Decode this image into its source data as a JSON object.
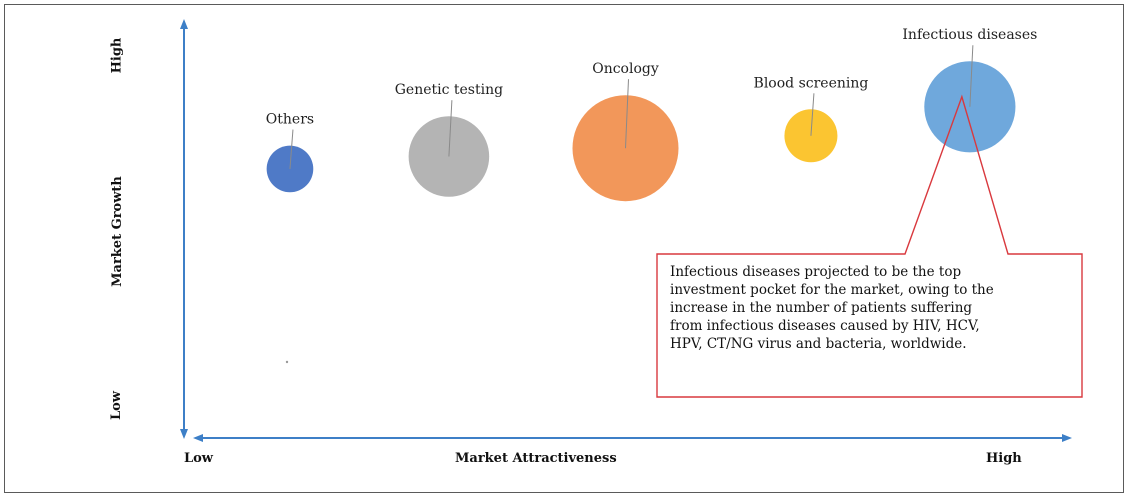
{
  "chart_data": {
    "type": "bubble",
    "x_axis": {
      "label": "Market Attractiveness",
      "low": "Low",
      "high": "High"
    },
    "y_axis": {
      "label": "Market Growth",
      "low": "Low",
      "high": "High"
    },
    "bubbles": [
      {
        "label": "Others",
        "x": 0.12,
        "y": 0.65,
        "size": 0.44,
        "color": "#4f7ac7"
      },
      {
        "label": "Genetic testing",
        "x": 0.3,
        "y": 0.68,
        "size": 0.76,
        "color": "#b4b4b4"
      },
      {
        "label": "Oncology",
        "x": 0.5,
        "y": 0.7,
        "size": 1.0,
        "color": "#f2975a"
      },
      {
        "label": "Blood screening",
        "x": 0.71,
        "y": 0.73,
        "size": 0.5,
        "color": "#fbc531"
      },
      {
        "label": "Infectious diseases",
        "x": 0.89,
        "y": 0.8,
        "size": 0.86,
        "color": "#6fa8dc"
      }
    ],
    "callout": {
      "target": "Infectious diseases",
      "lines": [
        "Infectious diseases projected to be the top",
        "investment pocket for the market, owing to the",
        "increase in the number of patients suffering",
        "from infectious diseases caused by HIV, HCV,",
        "HPV,  CT/NG virus and bacteria, worldwide."
      ],
      "border_color": "#d9393e"
    },
    "axis_color": "#3d7fc7"
  }
}
